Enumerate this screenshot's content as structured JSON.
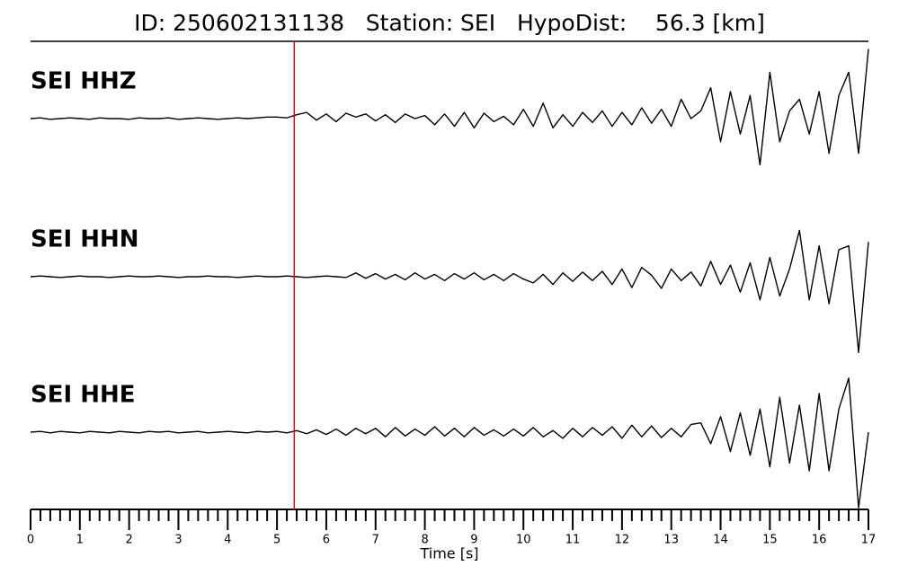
{
  "chart_data": {
    "type": "line",
    "title": "ID: 250602131138   Station: SEI   HypoDist:    56.3 [km]",
    "xlabel": "Time [s]",
    "xlim": [
      0,
      17
    ],
    "xticks": [
      0,
      1,
      2,
      3,
      4,
      5,
      6,
      7,
      8,
      9,
      10,
      11,
      12,
      13,
      14,
      15,
      16,
      17
    ],
    "xminorticks": [
      0.2,
      0.4,
      0.6,
      0.8,
      1.2,
      1.4,
      1.6,
      1.8,
      2.2,
      2.4,
      2.6,
      2.8,
      3.2,
      3.4,
      3.6,
      3.8,
      4.2,
      4.4,
      4.6,
      4.8,
      5.2,
      5.4,
      5.6,
      5.8,
      6.2,
      6.4,
      6.6,
      6.8,
      7.2,
      7.4,
      7.6,
      7.8,
      8.2,
      8.4,
      8.6,
      8.8,
      9.2,
      9.4,
      9.6,
      9.8,
      10.2,
      10.4,
      10.6,
      10.8,
      11.2,
      11.4,
      11.6,
      11.8,
      12.2,
      12.4,
      12.6,
      12.8,
      13.2,
      13.4,
      13.6,
      13.8,
      14.2,
      14.4,
      14.6,
      14.8,
      15.2,
      15.4,
      15.6,
      15.8,
      16.2,
      16.4,
      16.6,
      16.8
    ],
    "ylim": [
      -1,
      1
    ],
    "pick_x": 5.35,
    "pick_color": "#e8000b",
    "label_color": "#4a9a00",
    "x": [
      0,
      0.2,
      0.4,
      0.6,
      0.8,
      1,
      1.2,
      1.4,
      1.6,
      1.8,
      2,
      2.2,
      2.4,
      2.6,
      2.8,
      3,
      3.2,
      3.4,
      3.6,
      3.8,
      4,
      4.2,
      4.4,
      4.6,
      4.8,
      5,
      5.2,
      5.4,
      5.6,
      5.8,
      6,
      6.2,
      6.4,
      6.6,
      6.8,
      7,
      7.2,
      7.4,
      7.6,
      7.8,
      8,
      8.2,
      8.4,
      8.6,
      8.8,
      9,
      9.2,
      9.4,
      9.6,
      9.8,
      10,
      10.2,
      10.4,
      10.6,
      10.8,
      11,
      11.2,
      11.4,
      11.6,
      11.8,
      12,
      12.2,
      12.4,
      12.6,
      12.8,
      13,
      13.2,
      13.4,
      13.6,
      13.8,
      14,
      14.2,
      14.4,
      14.6,
      14.8,
      15,
      15.2,
      15.4,
      15.6,
      15.8,
      16,
      16.2,
      16.4,
      16.6,
      16.8,
      17
    ],
    "series": [
      {
        "name": "SEI HHZ",
        "color": "#000000",
        "values": [
          0,
          0.01,
          -0.01,
          0,
          0.01,
          0,
          -0.01,
          0.01,
          0,
          0,
          -0.01,
          0.01,
          0,
          0,
          0.01,
          -0.01,
          0,
          0.01,
          0,
          -0.01,
          0,
          0.01,
          0,
          0.01,
          0.02,
          0.02,
          0.01,
          0.05,
          0.08,
          -0.02,
          0.06,
          -0.04,
          0.07,
          0.02,
          0.06,
          -0.03,
          0.05,
          -0.05,
          0.06,
          0,
          0.04,
          -0.08,
          0.06,
          -0.1,
          0.08,
          -0.12,
          0.07,
          -0.04,
          0.03,
          -0.08,
          0.12,
          -0.1,
          0.2,
          -0.12,
          0.05,
          -0.1,
          0.08,
          -0.05,
          0.1,
          -0.1,
          0.08,
          -0.08,
          0.14,
          -0.06,
          0.12,
          -0.1,
          0.25,
          0,
          0.1,
          0.4,
          -0.3,
          0.35,
          -0.2,
          0.3,
          -0.6,
          0.6,
          -0.3,
          0.1,
          0.25,
          -0.2,
          0.35,
          -0.45,
          0.3,
          0.6,
          -0.45,
          0.9
        ]
      },
      {
        "name": "SEI HHN",
        "color": "#000000",
        "values": [
          0,
          0.01,
          0,
          -0.01,
          0,
          0.01,
          0,
          0,
          -0.01,
          0,
          0.01,
          0,
          0,
          0.01,
          0,
          -0.01,
          0,
          0,
          0.01,
          0,
          0,
          -0.01,
          0,
          0.01,
          0,
          0,
          0.01,
          0,
          -0.01,
          0,
          0.01,
          0,
          -0.01,
          0.05,
          -0.02,
          0.04,
          -0.03,
          0.03,
          -0.04,
          0.05,
          -0.03,
          0.03,
          -0.05,
          0.04,
          -0.03,
          0.05,
          -0.04,
          0.03,
          -0.05,
          0.04,
          -0.03,
          -0.08,
          0.03,
          -0.1,
          0.05,
          -0.06,
          0.06,
          -0.05,
          0.07,
          -0.1,
          0.1,
          -0.14,
          0.12,
          0.02,
          -0.15,
          0.1,
          -0.05,
          0.06,
          -0.12,
          0.2,
          -0.1,
          0.15,
          -0.2,
          0.18,
          -0.3,
          0.25,
          -0.25,
          0.1,
          0.6,
          -0.3,
          0.4,
          -0.35,
          0.35,
          0.4,
          -0.98,
          0.45
        ]
      },
      {
        "name": "SEI HHE",
        "color": "#000000",
        "values": [
          0,
          0.01,
          -0.01,
          0.01,
          0,
          -0.01,
          0.01,
          0,
          -0.01,
          0.01,
          0,
          -0.01,
          0.01,
          0,
          0.01,
          -0.01,
          0,
          0.01,
          -0.01,
          0,
          0.01,
          0,
          -0.01,
          0.01,
          0,
          0.01,
          -0.01,
          0.02,
          -0.02,
          0.03,
          -0.03,
          0.04,
          -0.04,
          0.05,
          -0.02,
          0.05,
          -0.06,
          0.06,
          -0.05,
          0.04,
          -0.04,
          0.07,
          -0.05,
          0.05,
          -0.06,
          0.06,
          -0.04,
          0.03,
          -0.05,
          0.04,
          -0.05,
          0.06,
          -0.06,
          0.02,
          -0.08,
          0.05,
          -0.06,
          0.06,
          -0.04,
          0.07,
          -0.08,
          0.09,
          -0.06,
          0.08,
          -0.07,
          0.05,
          -0.06,
          0.1,
          0.12,
          -0.15,
          0.2,
          -0.25,
          0.25,
          -0.3,
          0.3,
          -0.45,
          0.45,
          -0.4,
          0.35,
          -0.5,
          0.5,
          -0.5,
          0.3,
          0.7,
          -0.98,
          0
        ]
      }
    ]
  }
}
